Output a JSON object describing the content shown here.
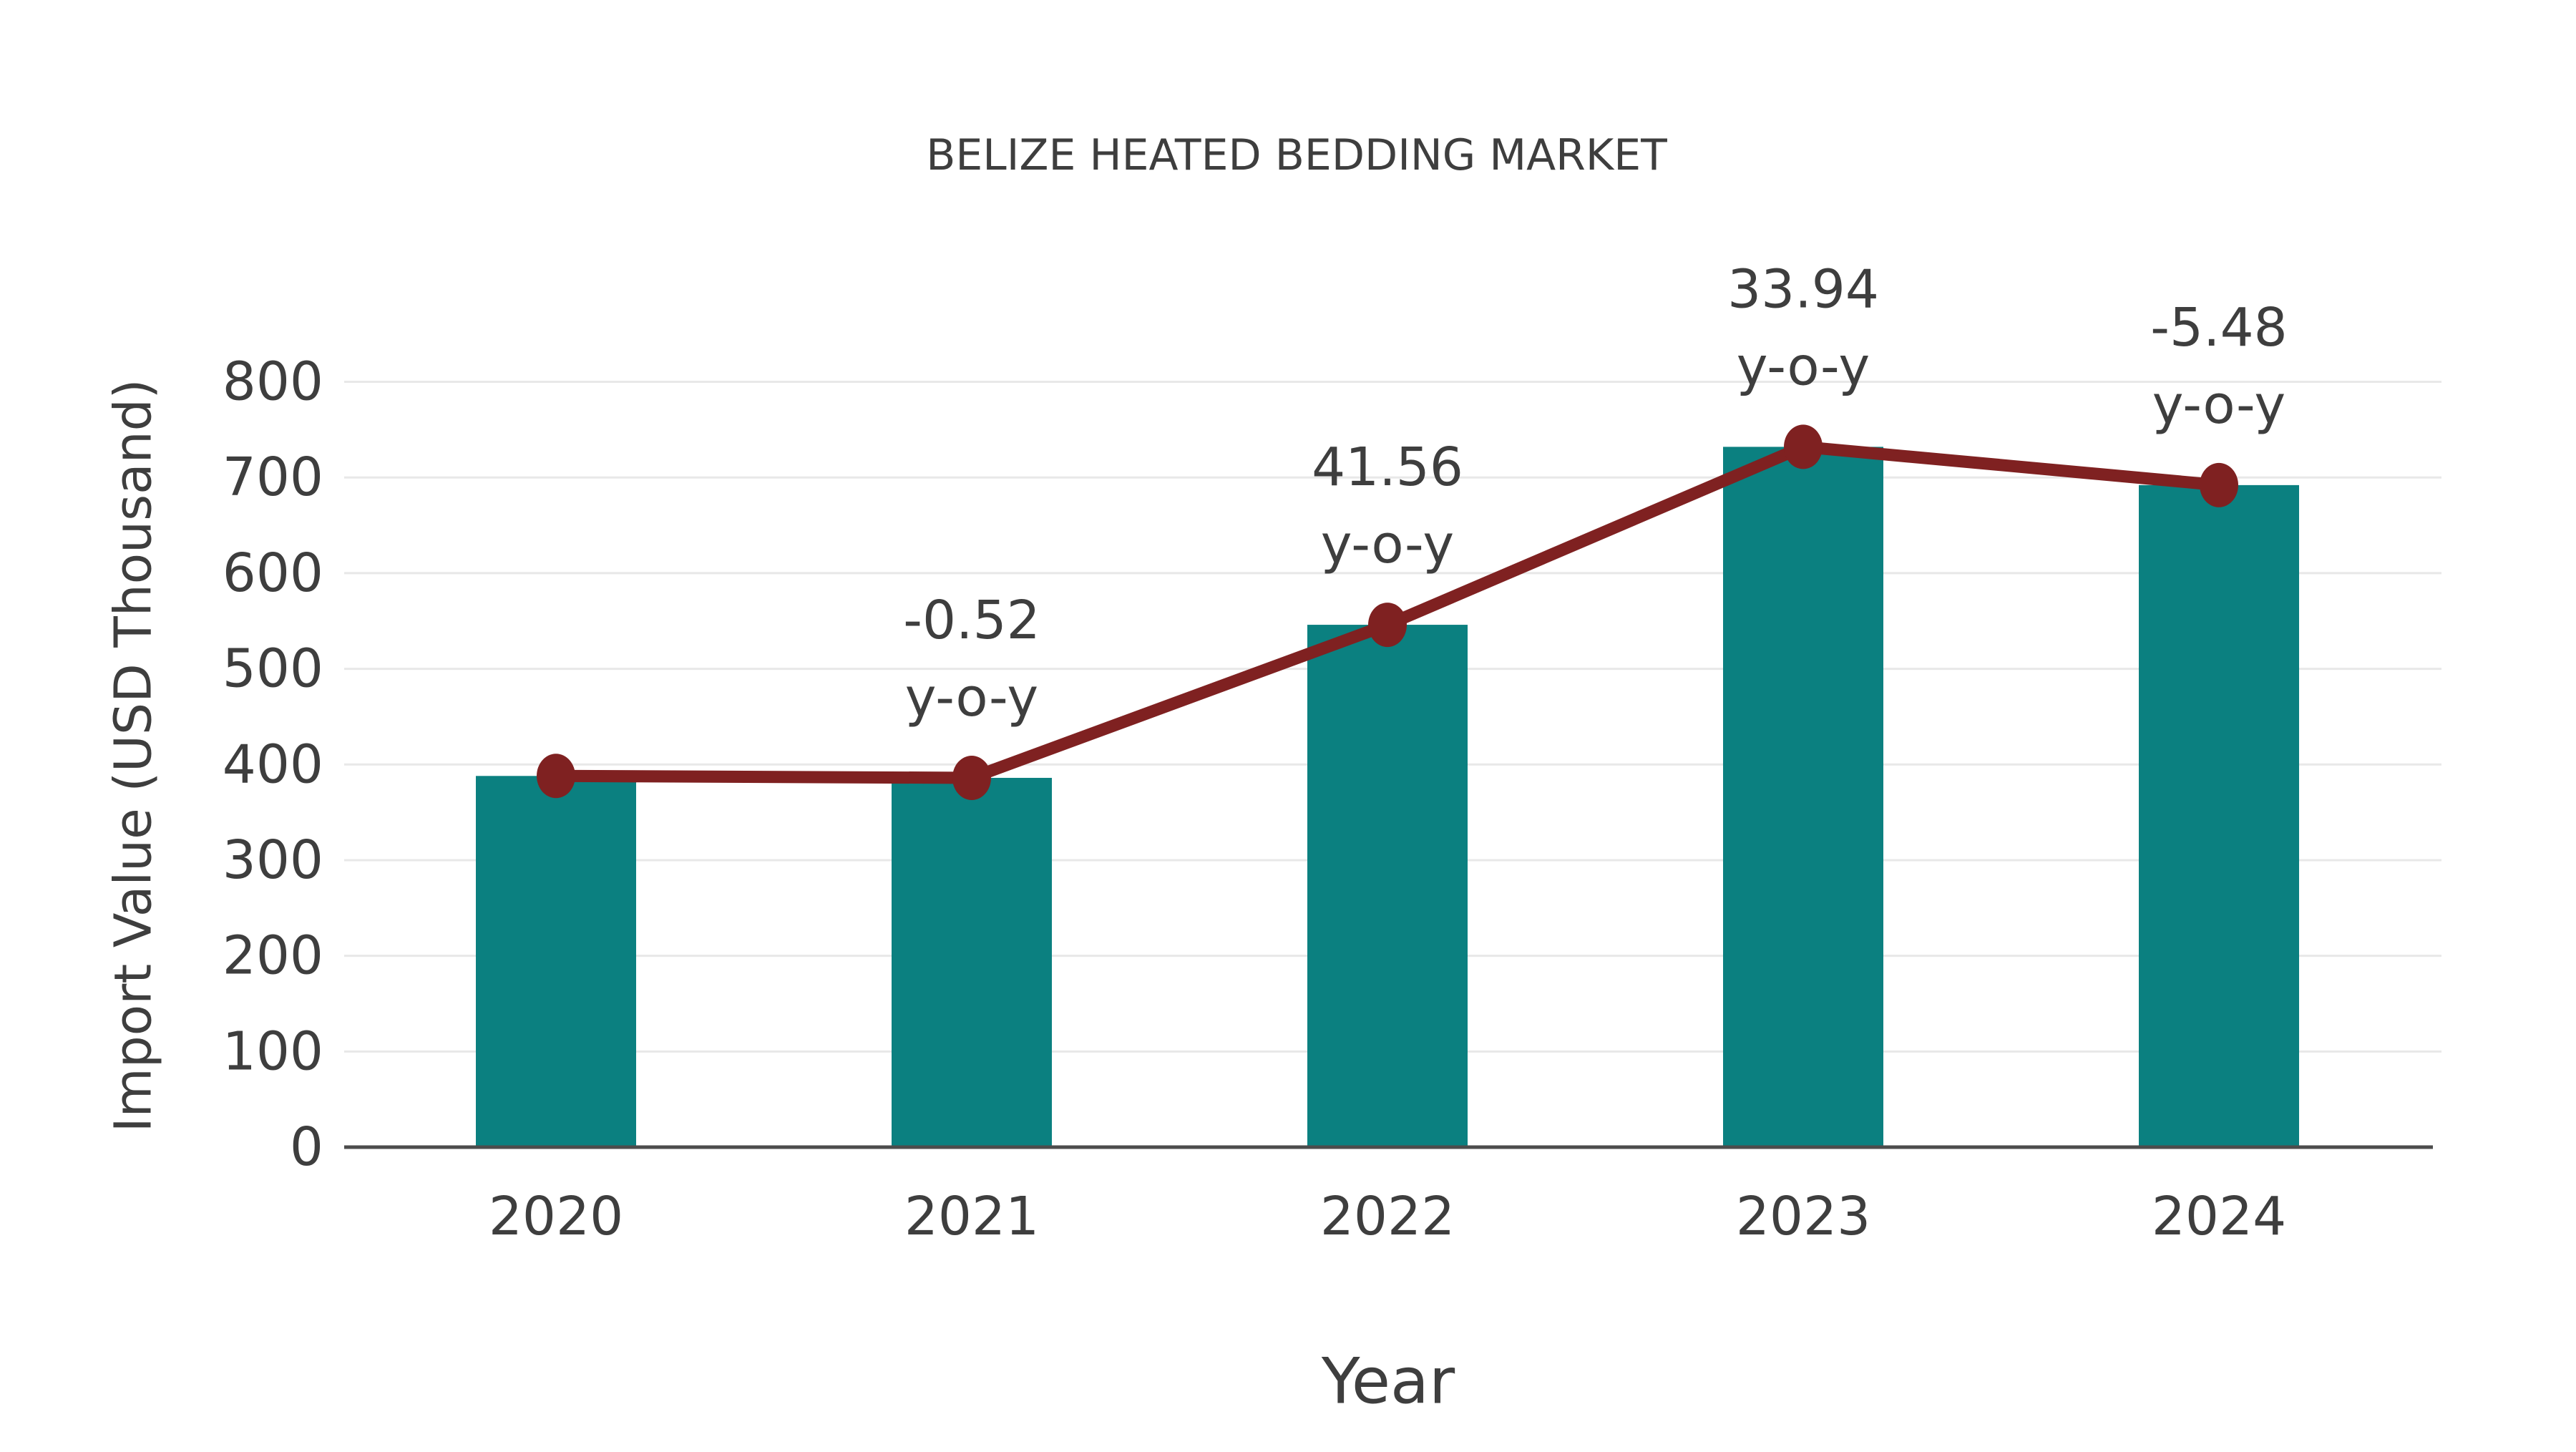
{
  "figure": {
    "background": "#ffffff"
  },
  "chart_data": {
    "type": "bar",
    "title": "BELIZE HEATED BEDDING MARKET",
    "xlabel": "Year",
    "ylabel": "Import Value (USD Thousand)",
    "categories": [
      "2020",
      "2021",
      "2022",
      "2023",
      "2024"
    ],
    "series": [
      {
        "name": "Import Value (USD Thousand)",
        "type": "bar",
        "values": [
          388,
          386,
          546,
          732,
          692
        ]
      },
      {
        "name": "Import Value trend",
        "type": "line",
        "values": [
          388,
          386,
          546,
          732,
          692
        ]
      }
    ],
    "annotations": [
      {
        "category": "2021",
        "value": "-0.52",
        "suffix": "y-o-y"
      },
      {
        "category": "2022",
        "value": "41.56",
        "suffix": "y-o-y"
      },
      {
        "category": "2023",
        "value": "33.94",
        "suffix": "y-o-y"
      },
      {
        "category": "2024",
        "value": "-5.48",
        "suffix": "y-o-y"
      }
    ],
    "ylim": [
      0,
      800
    ],
    "ytick_step": 100,
    "yticks": [
      "0",
      "100",
      "200",
      "300",
      "400",
      "500",
      "600",
      "700",
      "800"
    ],
    "grid": true,
    "legend": "none",
    "colors": {
      "bar": "#0b8080",
      "line": "#7f2121",
      "text": "#3e3e3e",
      "grid": "#e8e8e8",
      "axis": "#4c4c4c"
    }
  }
}
